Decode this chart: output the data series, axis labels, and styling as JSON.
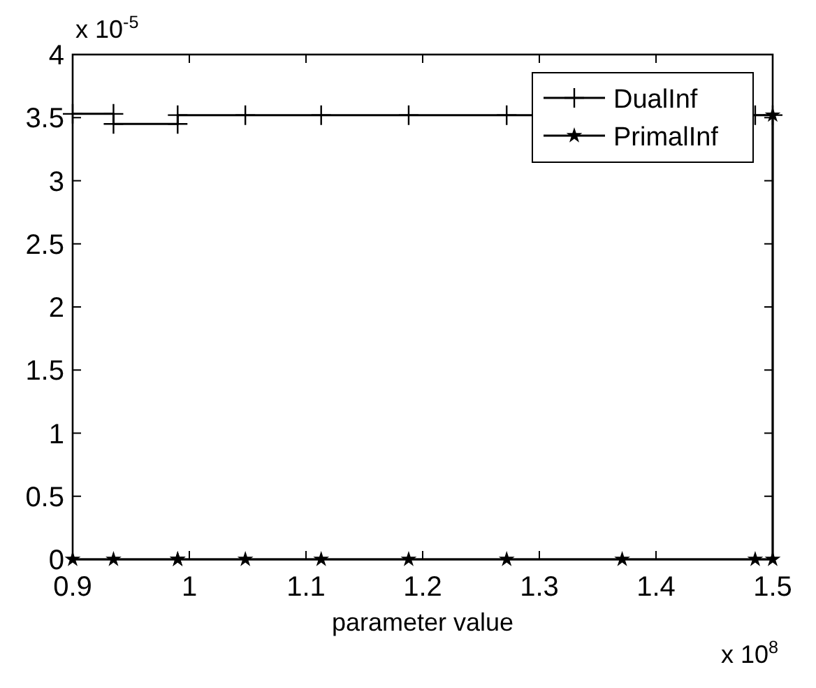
{
  "chart_data": {
    "type": "line",
    "xlabel": "parameter value",
    "annotations": [
      "x 10$^{-5}$",
      "x 10$^{8}$"
    ],
    "xlim": [
      0.9,
      1.5
    ],
    "xticks": [
      0.9,
      1,
      1.1,
      1.2,
      1.3,
      1.4,
      1.5
    ],
    "ylim": [
      0,
      4
    ],
    "yticks": [
      0,
      0.5,
      1,
      1.5,
      2,
      2.5,
      3,
      3.5,
      4
    ],
    "grid": false,
    "legend": "top right",
    "line_style": "solid",
    "series": [
      {
        "name": "DualInf",
        "color": "#000000",
        "marker": "cross",
        "x": [
          0.9,
          0.935,
          0.935,
          0.99,
          0.99,
          1.048,
          1.113,
          1.188,
          1.272,
          1.485,
          1.5
        ],
        "values": [
          3.53,
          3.53,
          3.45,
          3.45,
          3.52,
          3.52,
          3.52,
          3.52,
          3.52,
          3.52,
          3.52
        ]
      },
      {
        "name": "PrimalInf",
        "color": "#000000",
        "marker": "star",
        "x": [
          1.5,
          1.5,
          1.485,
          1.371,
          1.272,
          1.188,
          1.113,
          1.048,
          0.99,
          0.99,
          0.935,
          0.9
        ],
        "values": [
          3.52,
          0,
          0,
          0,
          0,
          0,
          0,
          0,
          0,
          0,
          0,
          0
        ]
      }
    ]
  }
}
